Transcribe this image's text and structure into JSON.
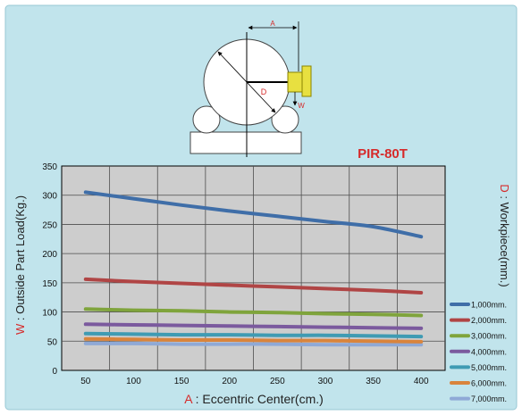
{
  "diagram": {
    "dimension_a": "A",
    "dimension_d": "D",
    "dimension_w": "W"
  },
  "chart_data": {
    "type": "line",
    "title": "PIR-80T",
    "xlabel": {
      "letter": "A",
      "text": " : Eccentric Center(cm.)"
    },
    "ylabel": {
      "letter": "W",
      "text": " : Outside Part Load(Kg.)"
    },
    "right_label": {
      "letter": "D",
      "text": " : Workpiece(mm.)"
    },
    "x": [
      50,
      100,
      150,
      200,
      250,
      300,
      350,
      400
    ],
    "x_ticks": [
      "50",
      "100",
      "150",
      "200",
      "250",
      "300",
      "350",
      "400"
    ],
    "y_ticks": [
      "0",
      "50",
      "100",
      "150",
      "200",
      "250",
      "300",
      "350"
    ],
    "xlim": [
      25,
      425
    ],
    "ylim": [
      0,
      350
    ],
    "grid": true,
    "legend_position": "bottom-right",
    "series": [
      {
        "name": "1,000mm.",
        "color": "#3f6ea8",
        "values": [
          305,
          294,
          283,
          273,
          264,
          255,
          246,
          229
        ]
      },
      {
        "name": "2,000mm.",
        "color": "#b04545",
        "values": [
          156,
          152,
          149,
          146,
          143,
          140,
          137,
          133
        ]
      },
      {
        "name": "3,000mm.",
        "color": "#7fa43c",
        "values": [
          105,
          103,
          102,
          100,
          99,
          97,
          96,
          94
        ]
      },
      {
        "name": "4,000mm.",
        "color": "#7b5a9e",
        "values": [
          79,
          78,
          77,
          76,
          75,
          74,
          73,
          72
        ]
      },
      {
        "name": "5,000mm.",
        "color": "#3f9bb3",
        "values": [
          63,
          62,
          61,
          61,
          60,
          60,
          59,
          58
        ]
      },
      {
        "name": "6,000mm.",
        "color": "#d9843c",
        "values": [
          54,
          53,
          52,
          52,
          51,
          51,
          50,
          49
        ]
      },
      {
        "name": "7,000mm.",
        "color": "#8fa9d6",
        "values": [
          46,
          46,
          45,
          45,
          45,
          44,
          44,
          44
        ]
      }
    ]
  }
}
